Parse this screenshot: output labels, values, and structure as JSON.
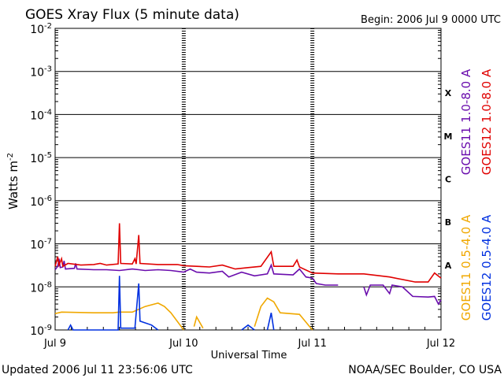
{
  "chart_data": {
    "type": "line",
    "title": "GOES Xray Flux (5 minute data)",
    "begin": "Begin:  2006 Jul 9 0000 UTC",
    "xlabel": "Universal Time",
    "ylabel": "Watts m",
    "ylabel_exp": "-2",
    "y_scale": "log",
    "ylim": [
      1e-09,
      0.01
    ],
    "xlim_days": [
      0,
      3
    ],
    "grid": true,
    "x_ticks": [
      {
        "day": 0,
        "label": "Jul 9"
      },
      {
        "day": 1,
        "label": "Jul 10"
      },
      {
        "day": 2,
        "label": "Jul 11"
      },
      {
        "day": 3,
        "label": "Jul 12"
      }
    ],
    "y_ticks": [
      {
        "exp": -2,
        "base": "10",
        "sup": "-2"
      },
      {
        "exp": -3,
        "base": "10",
        "sup": "-3"
      },
      {
        "exp": -4,
        "base": "10",
        "sup": "-4"
      },
      {
        "exp": -5,
        "base": "10",
        "sup": "-5"
      },
      {
        "exp": -6,
        "base": "10",
        "sup": "-6"
      },
      {
        "exp": -7,
        "base": "10",
        "sup": "-7"
      },
      {
        "exp": -8,
        "base": "10",
        "sup": "-8"
      },
      {
        "exp": -9,
        "base": "10",
        "sup": "-9"
      }
    ],
    "flare_classes": [
      {
        "label": "X",
        "exp": -3.5
      },
      {
        "label": "M",
        "exp": -4.5
      },
      {
        "label": "C",
        "exp": -5.5
      },
      {
        "label": "B",
        "exp": -6.5
      },
      {
        "label": "A",
        "exp": -7.5
      }
    ],
    "series": [
      {
        "name": "GOES11 1.0-8.0 A",
        "color": "#6a0dad",
        "points": [
          [
            0.0,
            2.5e-08
          ],
          [
            0.02,
            3e-08
          ],
          [
            0.03,
            4.5e-08
          ],
          [
            0.04,
            2.8e-08
          ],
          [
            0.06,
            2.9e-08
          ],
          [
            0.07,
            4e-08
          ],
          [
            0.08,
            2.6e-08
          ],
          [
            0.15,
            2.7e-08
          ],
          [
            0.16,
            3.5e-08
          ],
          [
            0.17,
            2.6e-08
          ],
          [
            0.3,
            2.5e-08
          ],
          [
            0.4,
            2.5e-08
          ],
          [
            0.5,
            2.4e-08
          ],
          [
            0.6,
            2.6e-08
          ],
          [
            0.65,
            2.5e-08
          ],
          [
            0.7,
            2.4e-08
          ],
          [
            0.8,
            2.5e-08
          ],
          [
            0.9,
            2.4e-08
          ],
          [
            1.0,
            2.2e-08
          ],
          [
            1.05,
            2.6e-08
          ],
          [
            1.1,
            2.2e-08
          ],
          [
            1.2,
            2.1e-08
          ],
          [
            1.3,
            2.3e-08
          ],
          [
            1.35,
            1.7e-08
          ],
          [
            1.45,
            2.2e-08
          ],
          [
            1.55,
            1.8e-08
          ],
          [
            1.65,
            2e-08
          ],
          [
            1.68,
            3.2e-08
          ],
          [
            1.7,
            2e-08
          ],
          [
            1.85,
            1.9e-08
          ],
          [
            1.9,
            2.6e-08
          ],
          [
            1.95,
            1.7e-08
          ],
          [
            2.0,
            1.6e-08
          ],
          [
            2.03,
            1.2e-08
          ],
          [
            2.1,
            1.1e-08
          ],
          [
            2.2,
            1.1e-08
          ]
        ],
        "segments_extra": [
          [
            [
              2.4,
              1e-08
            ],
            [
              2.42,
              6.5e-09
            ],
            [
              2.45,
              1.1e-08
            ],
            [
              2.55,
              1.1e-08
            ],
            [
              2.6,
              7e-09
            ],
            [
              2.62,
              1.1e-08
            ],
            [
              2.7,
              1e-08
            ],
            [
              2.78,
              6e-09
            ],
            [
              2.9,
              5.8e-09
            ],
            [
              2.95,
              6e-09
            ],
            [
              2.98,
              4e-09
            ],
            [
              3.0,
              5e-09
            ]
          ]
        ]
      },
      {
        "name": "GOES12 1.0-8.0 A",
        "color": "#e00000",
        "points": [
          [
            0.0,
            3e-08
          ],
          [
            0.02,
            5e-08
          ],
          [
            0.03,
            3.2e-08
          ],
          [
            0.05,
            4.5e-08
          ],
          [
            0.06,
            3e-08
          ],
          [
            0.1,
            3.5e-08
          ],
          [
            0.2,
            3.2e-08
          ],
          [
            0.3,
            3.3e-08
          ],
          [
            0.35,
            3.5e-08
          ],
          [
            0.4,
            3.2e-08
          ],
          [
            0.49,
            3.4e-08
          ],
          [
            0.5,
            3e-07
          ],
          [
            0.51,
            3.5e-08
          ],
          [
            0.6,
            3.4e-08
          ],
          [
            0.62,
            4.5e-08
          ],
          [
            0.63,
            3.4e-08
          ],
          [
            0.65,
            1.6e-07
          ],
          [
            0.66,
            3.5e-08
          ],
          [
            0.8,
            3.3e-08
          ],
          [
            0.95,
            3.3e-08
          ],
          [
            1.0,
            3.1e-08
          ],
          [
            1.1,
            3e-08
          ],
          [
            1.2,
            2.9e-08
          ],
          [
            1.3,
            3.2e-08
          ],
          [
            1.4,
            2.6e-08
          ],
          [
            1.5,
            2.8e-08
          ],
          [
            1.6,
            3e-08
          ],
          [
            1.68,
            6.5e-08
          ],
          [
            1.7,
            3e-08
          ],
          [
            1.85,
            3e-08
          ],
          [
            1.88,
            4.2e-08
          ],
          [
            1.9,
            2.9e-08
          ],
          [
            2.0,
            2.1e-08
          ],
          [
            2.2,
            2e-08
          ],
          [
            2.4,
            2e-08
          ],
          [
            2.6,
            1.7e-08
          ],
          [
            2.8,
            1.3e-08
          ],
          [
            2.9,
            1.3e-08
          ],
          [
            2.95,
            2.1e-08
          ],
          [
            3.0,
            1.6e-08
          ]
        ]
      },
      {
        "name": "GOES11 0.5-4.0 A",
        "color": "#f0a800",
        "points": [
          [
            0.0,
            2.4e-09
          ],
          [
            0.05,
            2.6e-09
          ],
          [
            0.3,
            2.5e-09
          ],
          [
            0.45,
            2.5e-09
          ],
          [
            0.5,
            2.6e-09
          ],
          [
            0.6,
            2.6e-09
          ],
          [
            0.7,
            3.5e-09
          ],
          [
            0.8,
            4.2e-09
          ],
          [
            0.85,
            3.5e-09
          ],
          [
            0.9,
            2.5e-09
          ],
          [
            1.0,
            1e-09
          ]
        ],
        "segments_extra": [
          [
            [
              1.08,
              1.2e-09
            ],
            [
              1.1,
              2e-09
            ],
            [
              1.15,
              1.1e-09
            ]
          ],
          [
            [
              1.55,
              1.2e-09
            ],
            [
              1.6,
              3.5e-09
            ],
            [
              1.65,
              5.5e-09
            ],
            [
              1.7,
              4.5e-09
            ],
            [
              1.75,
              2.5e-09
            ],
            [
              1.9,
              2.3e-09
            ],
            [
              2.0,
              1e-09
            ]
          ]
        ]
      },
      {
        "name": "GOES12 0.5-4.0 A",
        "color": "#0030e0",
        "points": [
          [
            0.1,
            1e-09
          ],
          [
            0.12,
            1.3e-09
          ],
          [
            0.14,
            1e-09
          ],
          [
            0.3,
            1e-09
          ],
          [
            0.49,
            1e-09
          ],
          [
            0.5,
            1.8e-08
          ],
          [
            0.51,
            1.1e-09
          ],
          [
            0.62,
            1.1e-09
          ],
          [
            0.65,
            1.2e-08
          ],
          [
            0.66,
            1.6e-09
          ],
          [
            0.75,
            1.3e-09
          ],
          [
            0.8,
            1e-09
          ]
        ],
        "segments_extra": [
          [
            [
              1.45,
              1e-09
            ],
            [
              1.5,
              1.3e-09
            ],
            [
              1.55,
              1e-09
            ]
          ],
          [
            [
              1.65,
              1e-09
            ],
            [
              1.68,
              2.5e-09
            ],
            [
              1.7,
              1e-09
            ]
          ]
        ]
      }
    ]
  },
  "footer": {
    "updated": "Updated 2006 Jul 11 23:56:06 UTC",
    "credit": "NOAA/SEC Boulder, CO USA"
  }
}
